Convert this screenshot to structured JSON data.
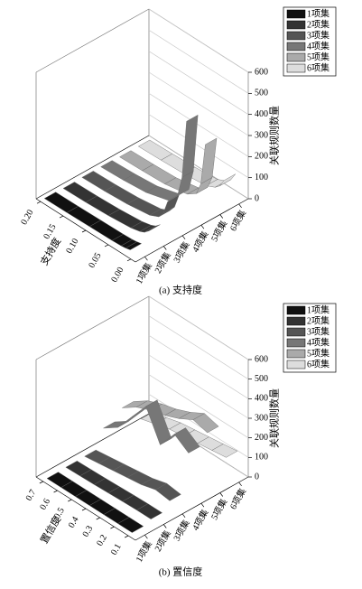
{
  "chart_data": [
    {
      "type": "ribbon",
      "caption": "(a) 支持度",
      "xlabel": "支持度",
      "zlabel": "关联规则数量",
      "x": [
        0.01,
        0.02,
        0.03,
        0.05,
        0.1,
        0.15,
        0.2
      ],
      "xlim": [
        -0.01,
        0.21
      ],
      "xticks": [
        {
          "value": 0,
          "label": "0.00"
        },
        {
          "value": 0.05,
          "label": "0.05"
        },
        {
          "value": 0.1,
          "label": "0.10"
        },
        {
          "value": 0.15,
          "label": "0.15"
        },
        {
          "value": 0.2,
          "label": "0.20"
        }
      ],
      "zlim": [
        0,
        600
      ],
      "zticks": [
        0,
        100,
        200,
        300,
        400,
        500,
        600
      ],
      "series": [
        {
          "name": "1项集",
          "color": "#111111",
          "values": [
            20,
            15,
            12,
            10,
            8,
            6,
            5
          ]
        },
        {
          "name": "2项集",
          "color": "#333333",
          "values": [
            60,
            40,
            30,
            20,
            10,
            5,
            3
          ]
        },
        {
          "name": "3项集",
          "color": "#555555",
          "values": [
            150,
            80,
            50,
            30,
            15,
            8,
            5
          ]
        },
        {
          "name": "4项集",
          "color": "#777777",
          "values": [
            480,
            200,
            100,
            50,
            20,
            10,
            5
          ]
        },
        {
          "name": "5项集",
          "color": "#aaaaaa",
          "values": [
            320,
            120,
            60,
            30,
            10,
            5,
            2
          ]
        },
        {
          "name": "6项集",
          "color": "#dddddd",
          "values": [
            100,
            60,
            40,
            20,
            10,
            5,
            2
          ]
        }
      ]
    },
    {
      "type": "ribbon",
      "caption": "(b) 置信度",
      "xlabel": "置信度",
      "zlabel": "关联规则数量",
      "x": [
        0.1,
        0.2,
        0.3,
        0.4,
        0.5,
        0.6,
        0.7
      ],
      "xlim": [
        0.05,
        0.75
      ],
      "xticks": [
        0.1,
        0.2,
        0.3,
        0.4,
        0.5,
        0.6,
        0.7
      ],
      "zlim": [
        0,
        600
      ],
      "zticks": [
        0,
        100,
        200,
        300,
        400,
        500,
        600
      ],
      "series": [
        {
          "name": "1项集",
          "color": "#111111",
          "values": [
            5,
            5,
            5,
            5,
            5,
            5,
            5
          ]
        },
        {
          "name": "2项集",
          "color": "#333333",
          "values": [
            20,
            20,
            18,
            15,
            12,
            10,
            8
          ]
        },
        {
          "name": "3项集",
          "color": "#555555",
          "values": [
            60,
            70,
            50,
            40,
            30,
            20,
            10
          ]
        },
        {
          "name": "4项集",
          "color": "#777777",
          "values": [
            250,
            300,
            200,
            350,
            250,
            150,
            100
          ]
        },
        {
          "name": "5项集",
          "color": "#aaaaaa",
          "values": [
            300,
            320,
            280,
            250,
            230,
            200,
            150
          ]
        },
        {
          "name": "6项集",
          "color": "#dddddd",
          "values": [
            120,
            110,
            100,
            90,
            80,
            60,
            40
          ]
        }
      ]
    }
  ]
}
